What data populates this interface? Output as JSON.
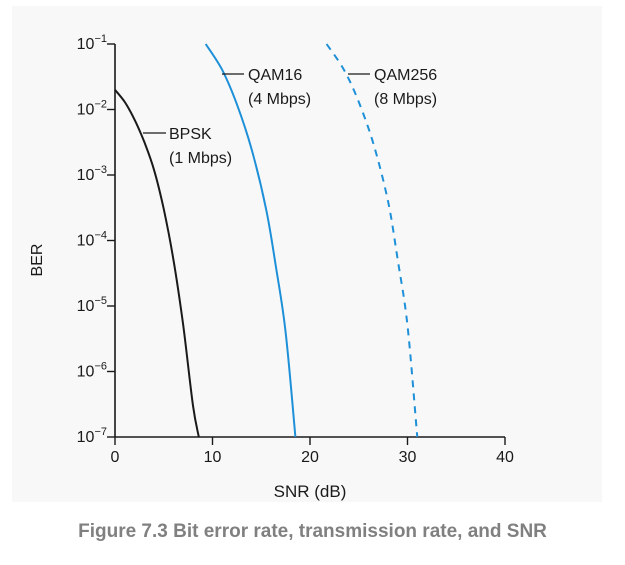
{
  "chart_data": {
    "type": "line",
    "xlabel": "SNR (dB)",
    "ylabel": "BER",
    "xlim": [
      0,
      40
    ],
    "x_ticks": [
      0,
      10,
      20,
      30,
      40
    ],
    "yscale": "log",
    "ylim": [
      1e-07,
      0.1
    ],
    "y_ticks": [
      {
        "value": 0.1,
        "base": "10",
        "exp": "−1"
      },
      {
        "value": 0.01,
        "base": "10",
        "exp": "−2"
      },
      {
        "value": 0.001,
        "base": "10",
        "exp": "−3"
      },
      {
        "value": 0.0001,
        "base": "10",
        "exp": "−4"
      },
      {
        "value": 1e-05,
        "base": "10",
        "exp": "−5"
      },
      {
        "value": 1e-06,
        "base": "10",
        "exp": "−6"
      },
      {
        "value": 1e-07,
        "base": "10",
        "exp": "−7"
      }
    ],
    "grid": false,
    "series": [
      {
        "name": "BPSK",
        "label_lines": [
          "BPSK",
          "(1 Mbps)"
        ],
        "color": "#1a1a1a",
        "dash": "solid",
        "points": [
          [
            0,
            0.02
          ],
          [
            1,
            0.013
          ],
          [
            2,
            0.007
          ],
          [
            3,
            0.0032
          ],
          [
            4,
            0.0012
          ],
          [
            5,
            0.0003
          ],
          [
            6,
            5e-05
          ],
          [
            7,
            5e-06
          ],
          [
            8,
            3e-07
          ],
          [
            8.6,
            1e-07
          ]
        ]
      },
      {
        "name": "QAM16",
        "label_lines": [
          "QAM16",
          "(4 Mbps)"
        ],
        "color": "#1e90d8",
        "dash": "solid",
        "points": [
          [
            9.3,
            0.1
          ],
          [
            11,
            0.04
          ],
          [
            12.5,
            0.012
          ],
          [
            14,
            0.0025
          ],
          [
            15.5,
            0.0003
          ],
          [
            16.5,
            4e-05
          ],
          [
            17.5,
            4e-06
          ],
          [
            18.5,
            1e-07
          ]
        ]
      },
      {
        "name": "QAM256",
        "label_lines": [
          "QAM256",
          "(8 Mbps)"
        ],
        "color": "#1e90d8",
        "dash": "dashed",
        "points": [
          [
            21.7,
            0.1
          ],
          [
            23.5,
            0.04
          ],
          [
            25,
            0.013
          ],
          [
            26.5,
            0.003
          ],
          [
            28,
            0.0004
          ],
          [
            29,
            5e-05
          ],
          [
            30,
            5e-06
          ],
          [
            31,
            1e-07
          ]
        ]
      }
    ],
    "caption": "Figure 7.3 Bit error rate, transmission rate, and SNR"
  }
}
